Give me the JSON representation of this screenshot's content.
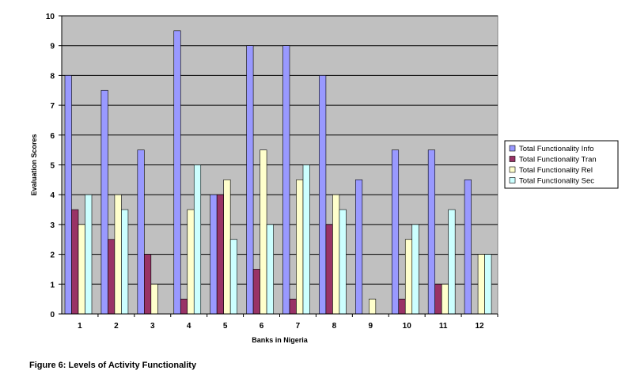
{
  "chart_data": {
    "type": "bar",
    "categories": [
      "1",
      "2",
      "3",
      "4",
      "5",
      "6",
      "7",
      "8",
      "9",
      "10",
      "11",
      "12"
    ],
    "series": [
      {
        "name": "Total Functionality Info",
        "color": "#9999ff",
        "values": [
          8,
          7.5,
          5.5,
          9.5,
          4,
          9,
          9,
          8,
          4.5,
          5.5,
          5.5,
          4.5
        ]
      },
      {
        "name": "Total Functionality Tran",
        "color": "#993366",
        "values": [
          3.5,
          2.5,
          2,
          0.5,
          4,
          1.5,
          0.5,
          3,
          0,
          0.5,
          1,
          0
        ]
      },
      {
        "name": "Total Functionality Rel",
        "color": "#ffffcc",
        "values": [
          3,
          4,
          1,
          3.5,
          4.5,
          5.5,
          4.5,
          4,
          0.5,
          2.5,
          1,
          2
        ]
      },
      {
        "name": "Total Functionality Sec",
        "color": "#ccffff",
        "values": [
          4,
          3.5,
          0,
          5,
          2.5,
          3,
          5,
          3.5,
          0,
          3,
          3.5,
          2
        ]
      }
    ],
    "xlabel": "Banks in Nigeria",
    "ylabel": "Evaluation Scores",
    "ylim": [
      0,
      10
    ],
    "yticks": [
      "0",
      "1",
      "2",
      "3",
      "4",
      "5",
      "6",
      "7",
      "8",
      "9",
      "10"
    ],
    "plot_background": "#c0c0c0",
    "grid": true,
    "legend_position": "right"
  },
  "caption": "Figure 6: Levels of Activity Functionality"
}
